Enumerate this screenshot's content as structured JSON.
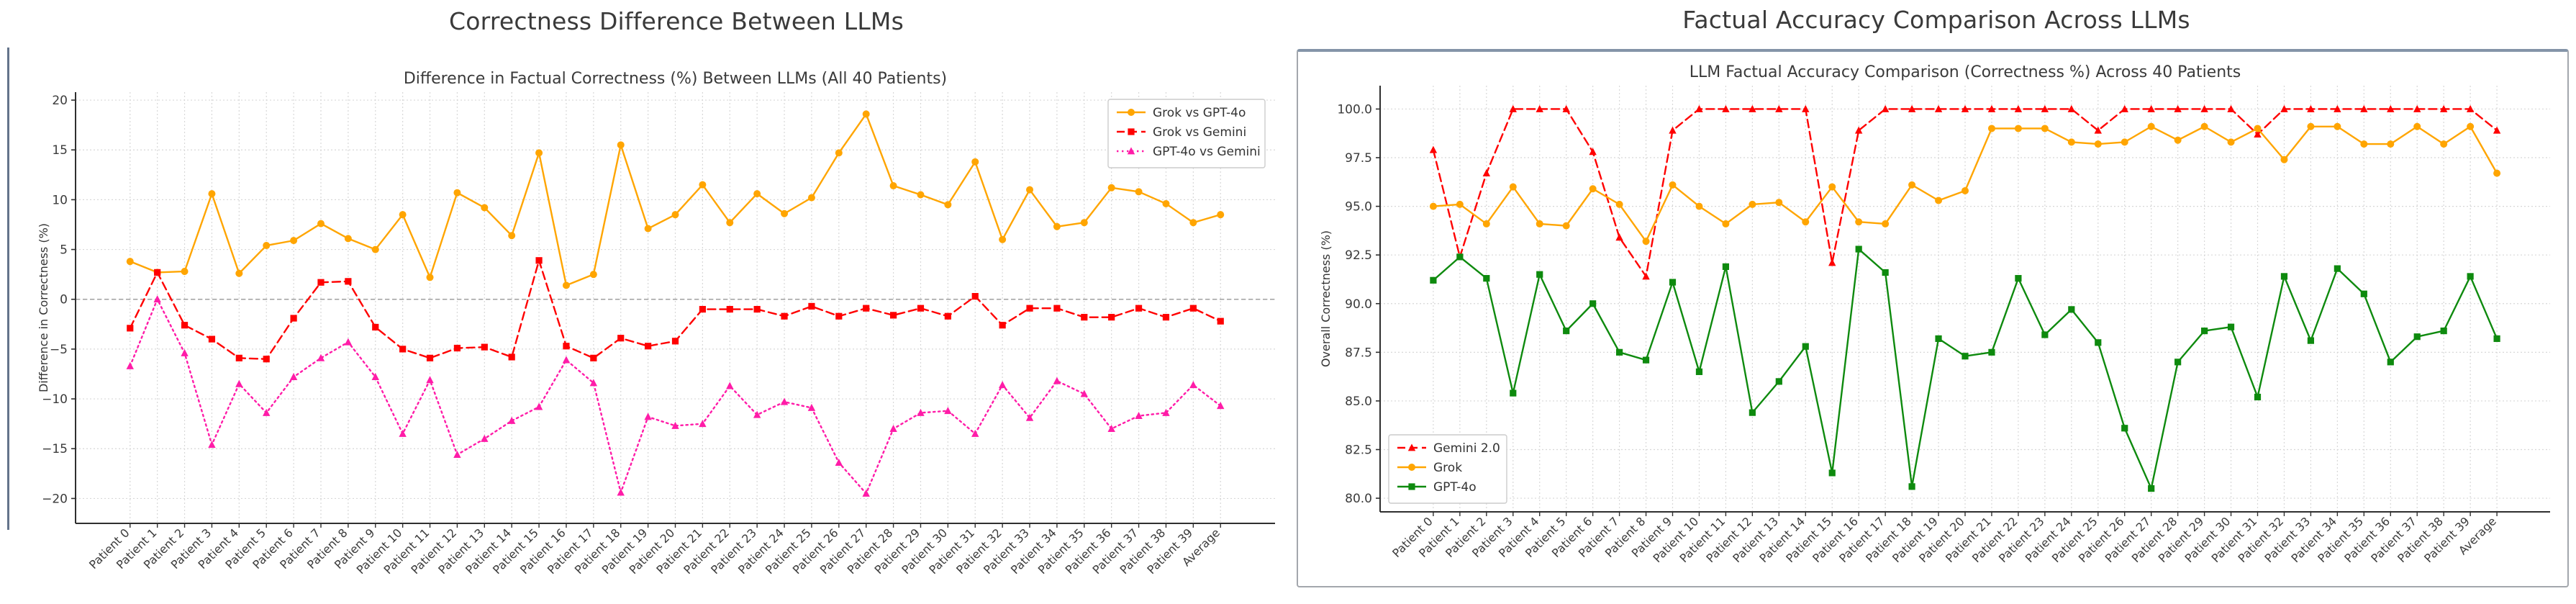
{
  "page": {
    "background": "#ffffff",
    "left_edge_line_color": "#64748b"
  },
  "chart_data": [
    {
      "type": "line",
      "outer_title": "Correctness Difference Between LLMs",
      "title": "Difference in Factual Correctness (%) Between LLMs (All 40 Patients)",
      "xlabel": "",
      "ylabel": "Difference in Correctness (%)",
      "ylim": [
        -22.5,
        20.8
      ],
      "yticks": [
        20,
        15,
        10,
        5,
        0,
        -5,
        -10,
        -15,
        -20
      ],
      "ytick_labels": [
        "20",
        "15",
        "10",
        "5",
        "0",
        "−5",
        "−10",
        "−15",
        "−20"
      ],
      "grid": true,
      "zero_line": true,
      "legend_position": "top-right",
      "categories": [
        "Patient 0",
        "Patient 1",
        "Patient 2",
        "Patient 3",
        "Patient 4",
        "Patient 5",
        "Patient 6",
        "Patient 7",
        "Patient 8",
        "Patient 9",
        "Patient 10",
        "Patient 11",
        "Patient 12",
        "Patient 13",
        "Patient 14",
        "Patient 15",
        "Patient 16",
        "Patient 17",
        "Patient 18",
        "Patient 19",
        "Patient 20",
        "Patient 21",
        "Patient 22",
        "Patient 23",
        "Patient 24",
        "Patient 25",
        "Patient 26",
        "Patient 27",
        "Patient 28",
        "Patient 29",
        "Patient 30",
        "Patient 31",
        "Patient 32",
        "Patient 33",
        "Patient 34",
        "Patient 35",
        "Patient 36",
        "Patient 37",
        "Patient 38",
        "Patient 39",
        "Average"
      ],
      "series": [
        {
          "name": "Grok vs GPT-4o",
          "color": "#FFA500",
          "line": "solid",
          "marker": "circle",
          "values": [
            3.8,
            2.7,
            2.8,
            10.6,
            2.6,
            5.4,
            5.9,
            7.6,
            6.1,
            5.0,
            8.5,
            2.2,
            10.7,
            9.2,
            6.4,
            14.7,
            1.4,
            2.5,
            15.5,
            7.1,
            8.5,
            11.5,
            7.7,
            10.6,
            8.6,
            10.2,
            14.7,
            18.6,
            11.4,
            10.5,
            9.5,
            13.8,
            6.0,
            11.0,
            7.3,
            7.7,
            11.2,
            10.8,
            9.6,
            7.7,
            8.5
          ]
        },
        {
          "name": "Grok vs Gemini",
          "color": "#FF0000",
          "line": "dashed",
          "marker": "square",
          "values": [
            -2.9,
            2.7,
            -2.6,
            -4.0,
            -5.9,
            -6.0,
            -1.9,
            1.7,
            1.8,
            -2.8,
            -5.0,
            -5.9,
            -4.9,
            -4.8,
            -5.8,
            3.9,
            -4.7,
            -5.9,
            -3.9,
            -4.7,
            -4.2,
            -1.0,
            -1.0,
            -1.0,
            -1.7,
            -0.7,
            -1.7,
            -0.9,
            -1.6,
            -0.9,
            -1.7,
            0.3,
            -2.6,
            -0.9,
            -0.9,
            -1.8,
            -1.8,
            -0.9,
            -1.8,
            -0.9,
            -2.2
          ]
        },
        {
          "name": "GPT-4o vs Gemini",
          "color": "#FF1CA8",
          "line": "dotted",
          "marker": "triangle",
          "values": [
            -6.7,
            0.0,
            -5.4,
            -14.6,
            -8.5,
            -11.4,
            -7.8,
            -5.9,
            -4.3,
            -7.8,
            -13.5,
            -8.1,
            -15.6,
            -14.0,
            -12.2,
            -10.8,
            -6.1,
            -8.4,
            -19.4,
            -11.8,
            -12.7,
            -12.5,
            -8.7,
            -11.6,
            -10.3,
            -10.9,
            -16.4,
            -19.5,
            -13.0,
            -11.4,
            -11.2,
            -13.5,
            -8.6,
            -11.9,
            -8.2,
            -9.5,
            -13.0,
            -11.7,
            -11.4,
            -8.6,
            -10.7
          ]
        }
      ]
    },
    {
      "type": "line",
      "outer_title": "Factual Accuracy Comparison Across LLMs",
      "title": "LLM Factual Accuracy Comparison (Correctness %) Across 40 Patients",
      "xlabel": "",
      "ylabel": "Overall Correctness (%)",
      "ylim": [
        79.3,
        101.2
      ],
      "yticks": [
        100,
        97.5,
        95,
        92.5,
        90,
        87.5,
        85,
        82.5,
        80
      ],
      "ytick_labels": [
        "100.0",
        "97.5",
        "95.0",
        "92.5",
        "90.0",
        "87.5",
        "85.0",
        "82.5",
        "80.0"
      ],
      "grid": true,
      "zero_line": false,
      "legend_position": "bottom-left",
      "categories": [
        "Patient 0",
        "Patient 1",
        "Patient 2",
        "Patient 3",
        "Patient 4",
        "Patient 5",
        "Patient 6",
        "Patient 7",
        "Patient 8",
        "Patient 9",
        "Patient 10",
        "Patient 11",
        "Patient 12",
        "Patient 13",
        "Patient 14",
        "Patient 15",
        "Patient 16",
        "Patient 17",
        "Patient 18",
        "Patient 19",
        "Patient 20",
        "Patient 21",
        "Patient 22",
        "Patient 23",
        "Patient 24",
        "Patient 25",
        "Patient 26",
        "Patient 27",
        "Patient 28",
        "Patient 29",
        "Patient 30",
        "Patient 31",
        "Patient 32",
        "Patient 33",
        "Patient 34",
        "Patient 35",
        "Patient 36",
        "Patient 37",
        "Patient 38",
        "Patient 39",
        "Average"
      ],
      "series": [
        {
          "name": "Gemini 2.0",
          "color": "#FF0000",
          "line": "dashed",
          "marker": "triangle",
          "values": [
            97.9,
            92.4,
            96.7,
            100,
            100,
            100,
            97.8,
            93.4,
            91.4,
            98.9,
            100,
            100,
            100,
            100,
            100,
            92.1,
            98.9,
            100,
            100,
            100,
            100,
            100,
            100,
            100,
            100,
            98.9,
            100,
            100,
            100,
            100,
            100,
            98.7,
            100,
            100,
            100,
            100,
            100,
            100,
            100,
            100,
            98.9
          ]
        },
        {
          "name": "Grok",
          "color": "#FFA500",
          "line": "solid",
          "marker": "circle",
          "values": [
            95.0,
            95.1,
            94.1,
            96.0,
            94.1,
            94.0,
            95.9,
            95.1,
            93.2,
            96.1,
            95.0,
            94.1,
            95.1,
            95.2,
            94.2,
            96.0,
            94.2,
            94.1,
            96.1,
            95.3,
            95.8,
            99.0,
            99.0,
            99.0,
            98.3,
            98.2,
            98.3,
            99.1,
            98.4,
            99.1,
            98.3,
            99.0,
            97.4,
            99.1,
            99.1,
            98.2,
            98.2,
            99.1,
            98.2,
            99.1,
            96.7
          ]
        },
        {
          "name": "GPT-4o",
          "color": "#0E8A0E",
          "line": "solid",
          "marker": "square",
          "values": [
            91.2,
            92.4,
            91.3,
            85.4,
            91.5,
            88.6,
            90.0,
            87.5,
            87.1,
            91.1,
            86.5,
            91.9,
            84.4,
            86.0,
            87.8,
            81.3,
            92.8,
            91.6,
            80.6,
            88.2,
            87.3,
            87.5,
            91.3,
            88.4,
            89.7,
            88.0,
            83.6,
            80.5,
            87.0,
            88.6,
            88.8,
            85.2,
            91.4,
            88.1,
            91.8,
            90.5,
            87.0,
            88.3,
            88.6,
            91.4,
            88.2
          ]
        }
      ]
    }
  ],
  "style": {
    "grid_color": "#d8d8d8",
    "zero_line_color": "#a0a0a0",
    "spine_color": "#2f2f2f",
    "tick_label_color": "#3b3b3b",
    "title_color": "#3a3a3a",
    "legend_border_color": "#cccccc"
  }
}
